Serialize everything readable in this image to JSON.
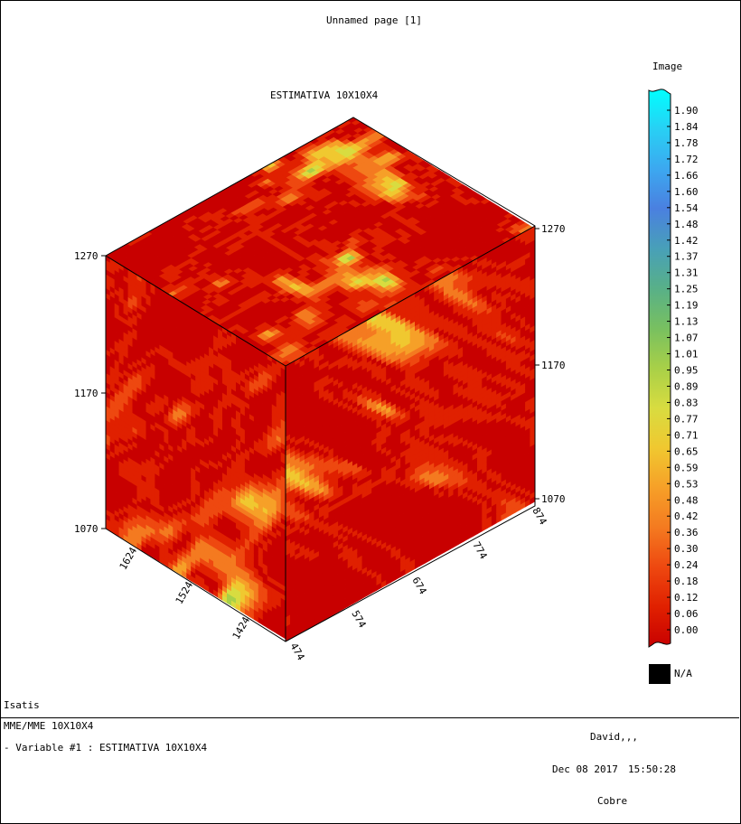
{
  "page": {
    "title": "Unnamed page [1]",
    "software": "Isatis"
  },
  "plot": {
    "title": "ESTIMATIVA 10X10X4"
  },
  "colorbar": {
    "title": "Image",
    "ticks": [
      "1.90",
      "1.84",
      "1.78",
      "1.72",
      "1.66",
      "1.60",
      "1.54",
      "1.48",
      "1.42",
      "1.37",
      "1.31",
      "1.25",
      "1.19",
      "1.13",
      "1.07",
      "1.01",
      "0.95",
      "0.89",
      "0.83",
      "0.77",
      "0.71",
      "0.65",
      "0.59",
      "0.53",
      "0.48",
      "0.42",
      "0.36",
      "0.30",
      "0.24",
      "0.18",
      "0.12",
      "0.06",
      "0.00"
    ],
    "na_label": "N/A",
    "na_color": "#000000",
    "colors": [
      "#c80000",
      "#e02000",
      "#ee4810",
      "#f47a20",
      "#f6a028",
      "#f0c830",
      "#d8dc40",
      "#a8d048",
      "#78c060",
      "#58b088",
      "#48a0b8",
      "#4a80e0",
      "#3ca8f0",
      "#28d0f4",
      "#00ffff"
    ]
  },
  "footer": {
    "file": "MME/MME 10X10X4",
    "variable": "- Variable #1 : ESTIMATIVA 10X10X4",
    "user": "David,,,",
    "date": "Dec 08 2017",
    "time": "15:50:28",
    "project": "Cobre"
  },
  "chart_data": {
    "type": "heatmap",
    "title": "ESTIMATIVA 10X10X4",
    "view": "3D block (isometric)",
    "z_axis_ticks": [
      "1270",
      "1170",
      "1070"
    ],
    "y_axis_ticks": [
      "1624",
      "1524",
      "1424"
    ],
    "x_axis_ticks": [
      "474",
      "574",
      "674",
      "774",
      "874"
    ],
    "value_range": [
      0.0,
      1.9
    ],
    "colorbar_title": "Image"
  }
}
